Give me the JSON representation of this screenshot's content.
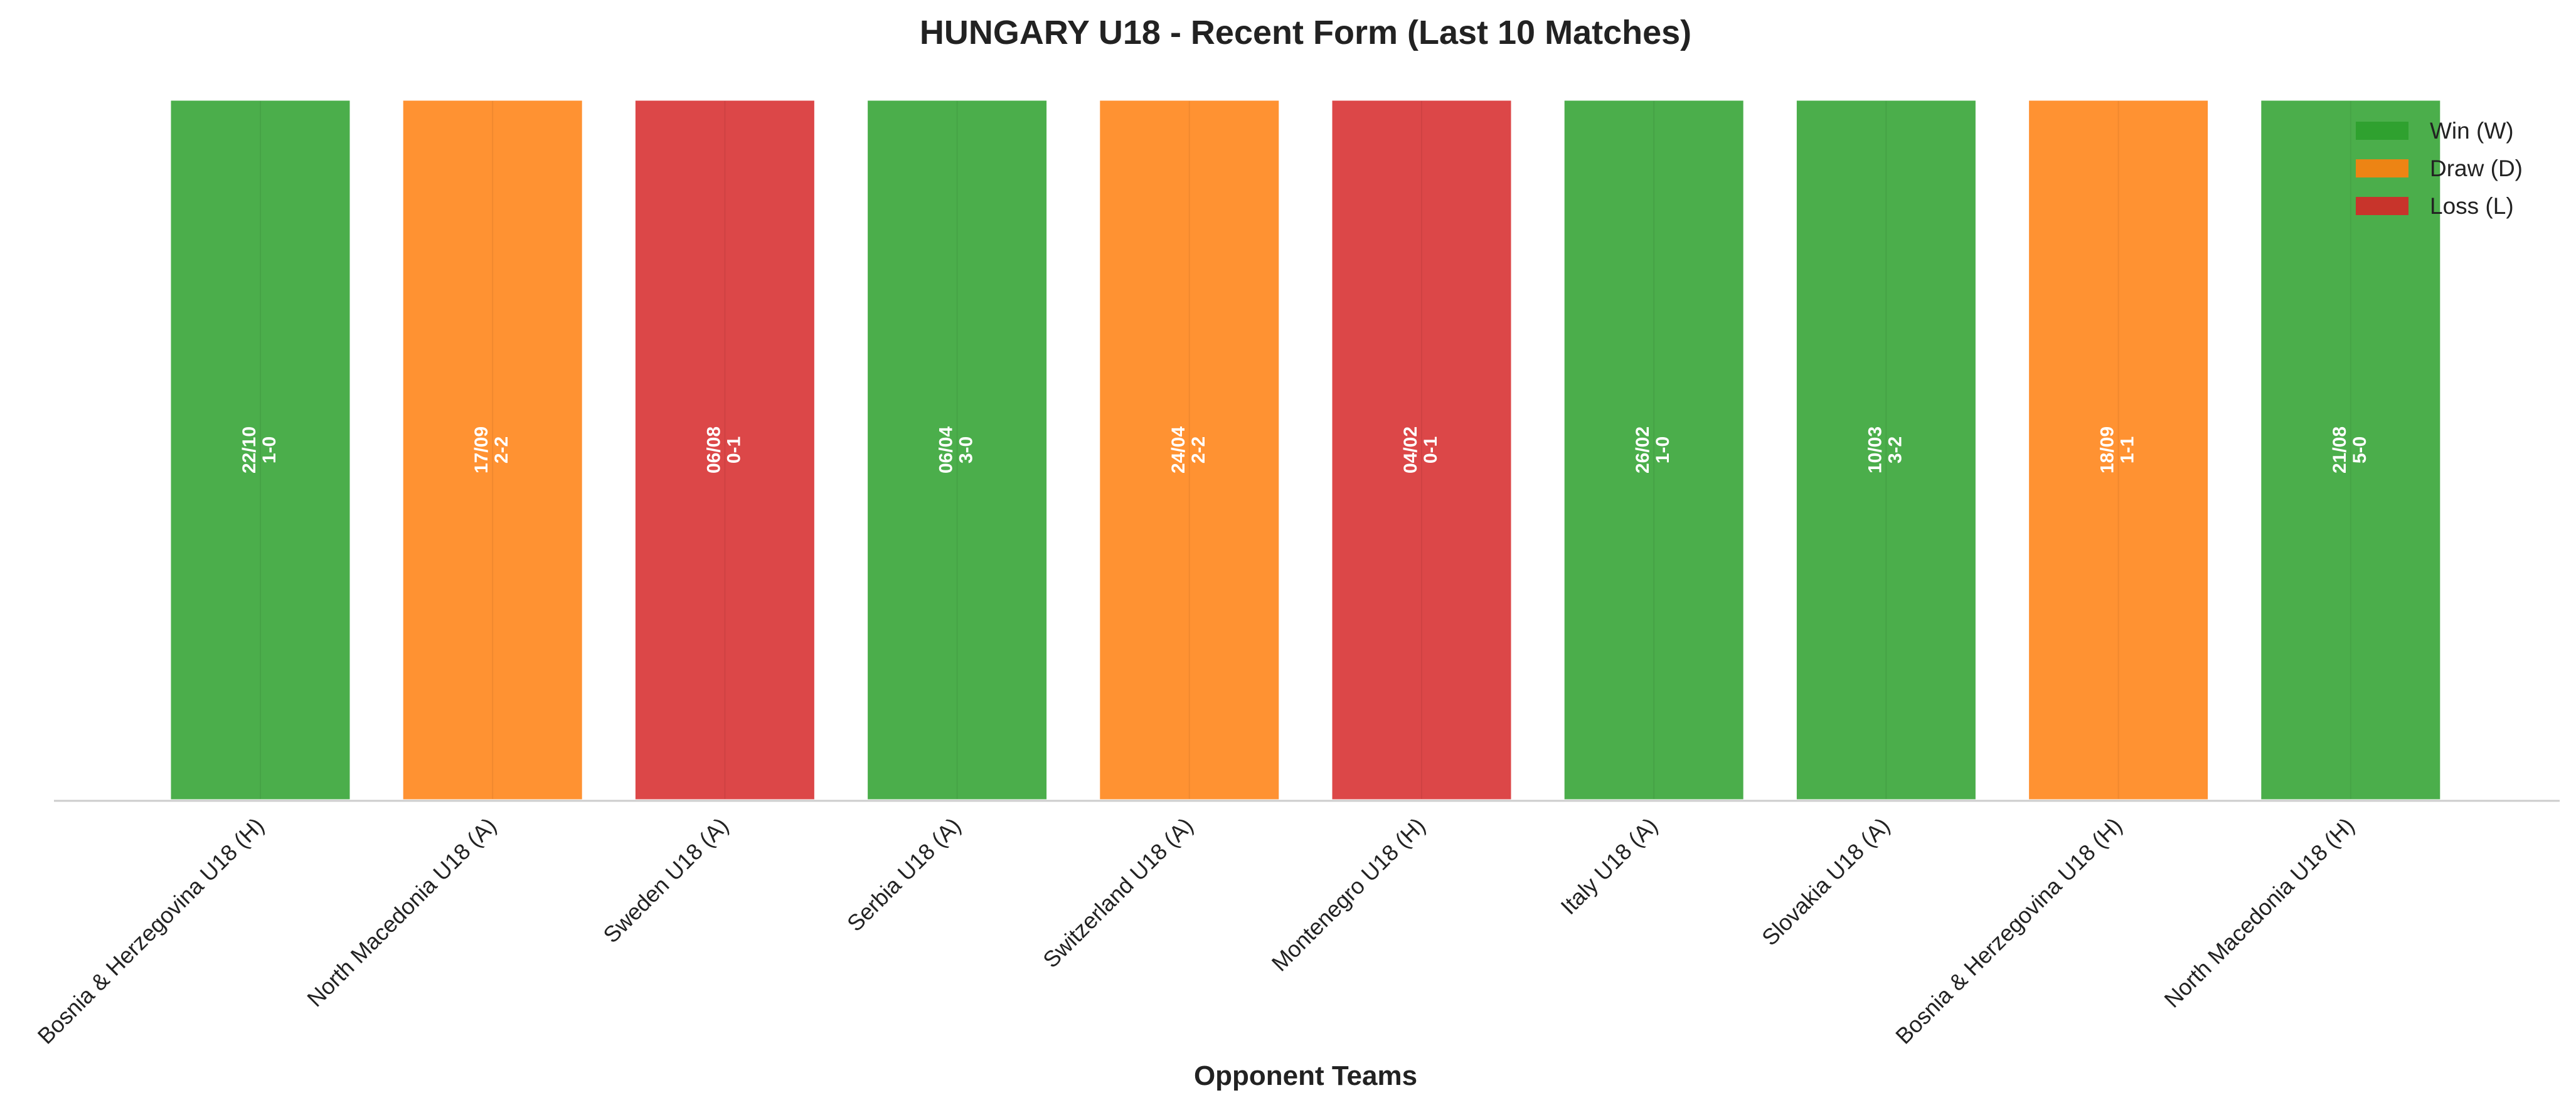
{
  "chart_data": {
    "type": "bar",
    "title": "HUNGARY U18 - Recent Form (Last 10 Matches)",
    "xlabel": "Opponent Teams",
    "ylabel": "",
    "categories": [
      "Bosnia & Herzegovina U18 (H)",
      "North Macedonia U18 (A)",
      "Sweden U18 (A)",
      "Serbia U18 (A)",
      "Switzerland U18 (A)",
      "Montenegro U18 (H)",
      "Italy U18 (A)",
      "Slovakia U18 (A)",
      "Bosnia & Herzegovina U18 (H)",
      "North Macedonia U18 (H)"
    ],
    "values": [
      1,
      1,
      1,
      1,
      1,
      1,
      1,
      1,
      1,
      1
    ],
    "results": [
      "W",
      "D",
      "L",
      "W",
      "D",
      "L",
      "W",
      "W",
      "D",
      "W"
    ],
    "dates": [
      "22/10",
      "17/09",
      "06/08",
      "06/04",
      "24/04",
      "04/02",
      "26/02",
      "10/03",
      "18/09",
      "21/08"
    ],
    "scores": [
      "1-0",
      "2-2",
      "0-1",
      "3-0",
      "2-2",
      "0-1",
      "1-0",
      "3-2",
      "1-1",
      "5-0"
    ],
    "ylim": [
      0,
      1
    ],
    "grid": false,
    "legend": {
      "placement": "top-right",
      "entries": [
        {
          "key": "W",
          "label": "Win (W)",
          "color": "#2ca02c"
        },
        {
          "key": "D",
          "label": "Draw (D)",
          "color": "#ff7f0e"
        },
        {
          "key": "L",
          "label": "Loss (L)",
          "color": "#d62728"
        }
      ]
    }
  }
}
